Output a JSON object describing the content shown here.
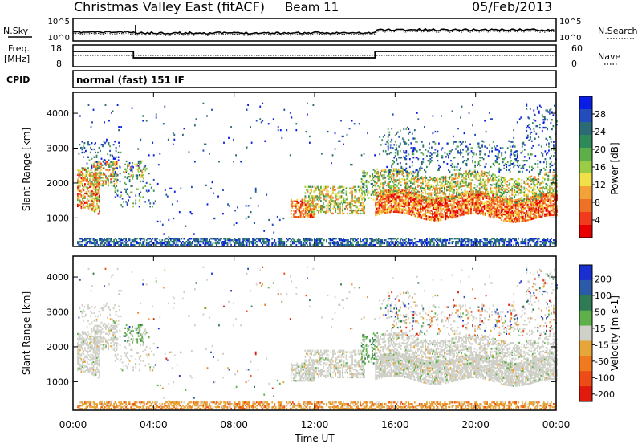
{
  "header": {
    "title": "Christmas Valley East (fitACF)",
    "beam": "Beam 11",
    "date": "05/Feb/2013"
  },
  "top_panel": {
    "left_label": "N.Sky",
    "right_label": "N.Search",
    "left_ticks": [
      "10^5",
      "10^0"
    ],
    "right_ticks": [
      "10^5",
      "10^0"
    ]
  },
  "freq_panel": {
    "left_label_lines": [
      "Freq.",
      "[MHz]"
    ],
    "right_label": "Nave",
    "left_ticks": [
      "18",
      "8"
    ],
    "right_ticks": [
      "60",
      "0"
    ]
  },
  "cpid": {
    "label": "CPID",
    "value": "normal (fast) 151 IF"
  },
  "chart_data": [
    {
      "type": "heatmap",
      "quantity": "power",
      "ylabel": "Slant Range [km]",
      "yticks": [
        1000,
        2000,
        3000,
        4000
      ],
      "ylim": [
        180,
        4600
      ],
      "xlim": [
        0,
        24
      ],
      "colorbar_label": "Power [dB]",
      "colorbar_ticks": [
        4,
        8,
        12,
        16,
        20,
        24,
        28
      ],
      "colorbar_colors": [
        "#0a1de6",
        "#234dbd",
        "#2c6a78",
        "#2f8a5a",
        "#5eae4a",
        "#9acd45",
        "#f2e04a",
        "#f3a23a",
        "#ee7226",
        "#f13b1c",
        "#e80000"
      ]
    },
    {
      "type": "heatmap",
      "quantity": "velocity",
      "ylabel": "Slant Range [km]",
      "yticks": [
        1000,
        2000,
        3000,
        4000
      ],
      "ylim": [
        180,
        4600
      ],
      "xlim": [
        0,
        24
      ],
      "xlabel": "Time UT",
      "xticks": [
        "00:00",
        "04:00",
        "08:00",
        "12:00",
        "16:00",
        "20:00",
        "00:00"
      ],
      "colorbar_label": "Velocity [m s-1]",
      "colorbar_ticks": [
        "200",
        "100",
        "50",
        "15",
        "-15",
        "-50",
        "-100",
        "-200"
      ],
      "colorbar_colors": [
        "#1a2fd0",
        "#2a5aa8",
        "#2f7b55",
        "#5fb04a",
        "#cfd0c8",
        "#e7a63a",
        "#f07b1f",
        "#ee4c16",
        "#e11a0e"
      ]
    }
  ]
}
